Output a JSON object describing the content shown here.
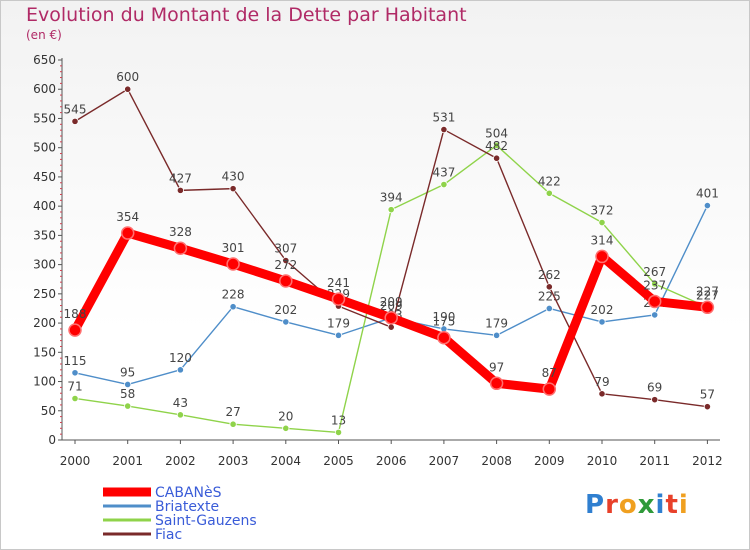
{
  "title": "Evolution du Montant de la Dette par Habitant",
  "unit": "(en €)",
  "logo": "Proxiti",
  "chart_data": {
    "type": "line",
    "title": "Evolution du Montant de la Dette par Habitant",
    "ylabel": "(en €)",
    "xlabel": "",
    "x": [
      "2000",
      "2001",
      "2002",
      "2003",
      "2004",
      "2005",
      "2006",
      "2007",
      "2008",
      "2009",
      "2010",
      "2011",
      "2012"
    ],
    "ylim": [
      0,
      650
    ],
    "yticks": [
      0,
      50,
      100,
      150,
      200,
      250,
      300,
      350,
      400,
      450,
      500,
      550,
      600,
      650
    ],
    "grid": false,
    "legend_position": "bottom-left",
    "series": [
      {
        "name": "CABANèS",
        "color": "#ff0000",
        "values": [
          188,
          354,
          328,
          301,
          272,
          241,
          209,
          175,
          97,
          87,
          314,
          237,
          227
        ]
      },
      {
        "name": "Briatexte",
        "color": "#4f8ec9",
        "values": [
          115,
          95,
          120,
          228,
          202,
          179,
          209,
          190,
          179,
          225,
          202,
          214,
          401
        ]
      },
      {
        "name": "Saint-Gauzens",
        "color": "#8fd34a",
        "values": [
          71,
          58,
          43,
          27,
          20,
          13,
          394,
          437,
          504,
          422,
          372,
          267,
          227
        ]
      },
      {
        "name": "Fiac",
        "color": "#7a2a2a",
        "values": [
          545,
          600,
          427,
          430,
          307,
          229,
          193,
          531,
          482,
          262,
          79,
          69,
          57
        ]
      }
    ]
  }
}
